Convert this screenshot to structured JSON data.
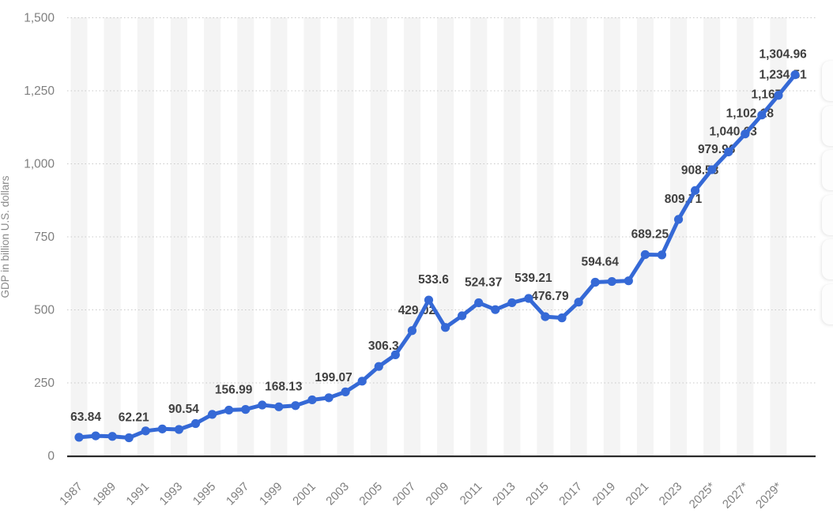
{
  "chart_data": {
    "type": "line",
    "title": "",
    "xlabel": "",
    "ylabel": "GDP in billion U.S. dollars",
    "legend_position": "none",
    "grid": "horizontal-dotted",
    "ylim": [
      0,
      1500
    ],
    "y_ticks": [
      0,
      250,
      500,
      750,
      1000,
      1250,
      1500
    ],
    "y_tick_labels": [
      "0",
      "250",
      "500",
      "750",
      "1,000",
      "1,250",
      "1,500"
    ],
    "x_tick_labels": [
      "1987",
      "1989",
      "1991",
      "1993",
      "1995",
      "1997",
      "1999",
      "2001",
      "2003",
      "2005",
      "2007",
      "2009",
      "2011",
      "2013",
      "2015",
      "2017",
      "2019",
      "2021",
      "2023",
      "2025*",
      "2027*",
      "2029*"
    ],
    "x": [
      1987,
      1988,
      1989,
      1990,
      1991,
      1992,
      1993,
      1994,
      1995,
      1996,
      1997,
      1998,
      1999,
      2000,
      2001,
      2002,
      2003,
      2004,
      2005,
      2006,
      2007,
      2008,
      2009,
      2010,
      2011,
      2012,
      2013,
      2014,
      2015,
      2016,
      2017,
      2018,
      2019,
      2020,
      2021,
      2022,
      2023,
      2024,
      2025,
      2026,
      2027,
      2028,
      2029,
      2030
    ],
    "values": [
      63.84,
      68.65,
      66.89,
      62.21,
      85.55,
      92.32,
      90.54,
      110.77,
      142.14,
      156.99,
      159.16,
      174.26,
      168.13,
      172.27,
      192.02,
      199.07,
      219.27,
      255.86,
      306.3,
      346.25,
      429.02,
      533.6,
      439.8,
      479.83,
      524.37,
      500.84,
      524.51,
      539.21,
      476.79,
      472.58,
      526.51,
      594.64,
      597.17,
      599.44,
      689.25,
      688.18,
      809.71,
      908.58,
      979.96,
      1040.63,
      1102.18,
      1167,
      1234.51,
      1304.96
    ],
    "point_labels": [
      "63.84",
      null,
      null,
      "62.21",
      null,
      null,
      "90.54",
      null,
      null,
      "156.99",
      null,
      null,
      "168.13",
      null,
      null,
      "199.07",
      null,
      null,
      "306.3",
      null,
      "429.02",
      "533.6",
      null,
      null,
      "524.37",
      null,
      null,
      "539.21",
      "476.79",
      null,
      null,
      "594.64",
      null,
      null,
      "689.25",
      null,
      "809.71",
      "908.58",
      "979.96",
      "1,040.63",
      "1,102.18",
      "1,167",
      "1,234.51",
      "1,304.96"
    ],
    "colors": {
      "line": "#3569d6",
      "marker": "#3569d6",
      "point_label": "#404040",
      "tick_label": "#7f7f7f",
      "axis_title": "#8a8a8a",
      "gridline": "#c9c9c9",
      "baseline": "#2b2b2b",
      "stripe": "#f4f4f4",
      "background": "#ffffff"
    }
  },
  "side_toolbar": {
    "button_count": 6
  }
}
